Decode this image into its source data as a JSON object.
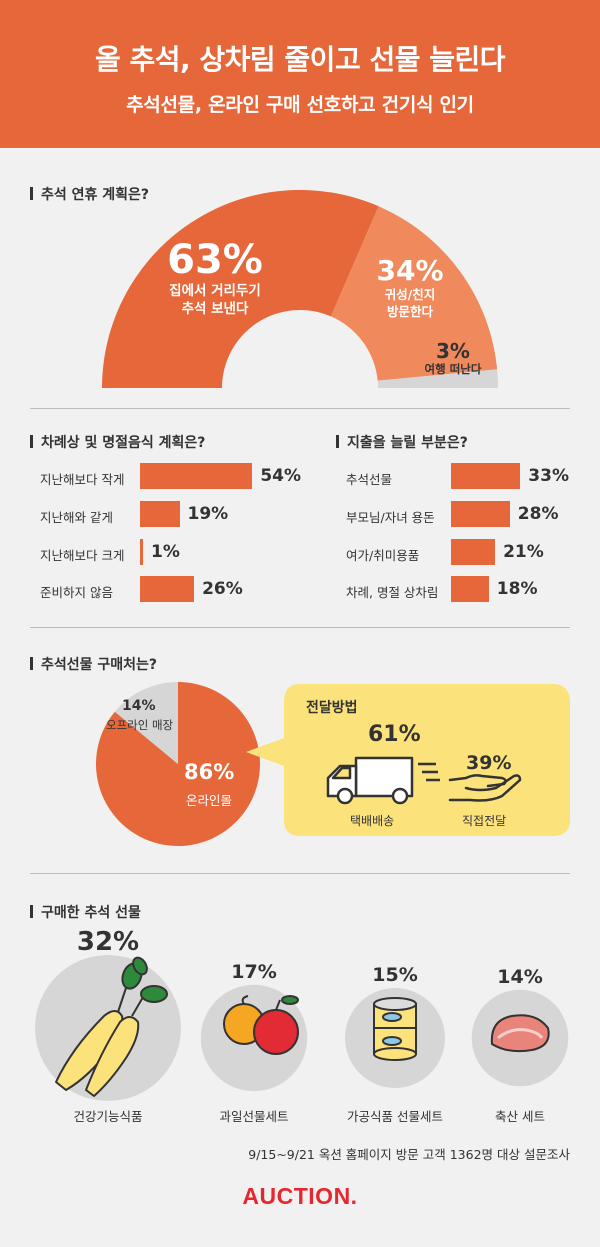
{
  "header": {
    "title": "올 추석, 상차림 줄이고 선물 늘린다",
    "subtitle": "추석선물, 온라인 구매 선호하고 건기식 인기"
  },
  "colors": {
    "primary": "#e6673a",
    "secondary": "#f08a5d",
    "gray": "#d6d6d6",
    "yellow": "#fbe27a",
    "logo": "#e6272f"
  },
  "section1": {
    "title": "추석 연휴 계획은?"
  },
  "section2": {
    "title": "차례상 및 명절음식 계획은?"
  },
  "section3": {
    "title": "지출을 늘릴 부분은?"
  },
  "section4": {
    "title": "추석선물 구매처는?",
    "callout": {
      "title": "전달방법",
      "delivery_pct": "61%",
      "delivery_label": "택배배송",
      "direct_pct": "39%",
      "direct_label": "직접전달"
    }
  },
  "section5": {
    "title": "구매한 추석 선물"
  },
  "footer": {
    "note": "9/15~9/21 옥션 홈페이지 방문 고객 1362명 대상 설문조사",
    "logo": "AUCTION."
  },
  "chart_data": [
    {
      "type": "pie",
      "title": "추석 연휴 계획은?",
      "categories": [
        "집에서 거리두기 추석 보낸다",
        "귀성/친지 방문한다",
        "여행 떠난다"
      ],
      "category_lines": [
        [
          "집에서 거리두기",
          "추석 보낸다"
        ],
        [
          "귀성/친지",
          "방문한다"
        ],
        [
          "여행 떠난다"
        ]
      ],
      "values": [
        63,
        34,
        3
      ],
      "labels": [
        "63%",
        "34%",
        "3%"
      ],
      "colors": [
        "#e6673a",
        "#f08a5d",
        "#d6d6d6"
      ]
    },
    {
      "type": "bar",
      "title": "차례상 및 명절음식 계획은?",
      "categories": [
        "지난해보다 작게",
        "지난해와 같게",
        "지난해보다 크게",
        "준비하지 않음"
      ],
      "values": [
        54,
        19,
        1,
        26
      ],
      "labels": [
        "54%",
        "19%",
        "1%",
        "26%"
      ]
    },
    {
      "type": "bar",
      "title": "지출을 늘릴 부분은?",
      "categories": [
        "추석선물",
        "부모님/자녀 용돈",
        "여가/취미용품",
        "차례, 명절 상차림"
      ],
      "values": [
        33,
        28,
        21,
        18
      ],
      "labels": [
        "33%",
        "28%",
        "21%",
        "18%"
      ]
    },
    {
      "type": "pie",
      "title": "추석선물 구매처는?",
      "categories": [
        "온라인몰",
        "오프라인 매장"
      ],
      "values": [
        86,
        14
      ],
      "labels": [
        "86%",
        "14%"
      ],
      "colors": [
        "#e6673a",
        "#d6d6d6"
      ]
    },
    {
      "type": "bar",
      "title": "전달방법",
      "categories": [
        "택배배송",
        "직접전달"
      ],
      "values": [
        61,
        39
      ],
      "labels": [
        "61%",
        "39%"
      ]
    },
    {
      "type": "bar",
      "title": "구매한 추석 선물",
      "categories": [
        "건강기능식품",
        "과일선물세트",
        "가공식품 선물세트",
        "축산 세트"
      ],
      "values": [
        32,
        17,
        15,
        14
      ],
      "labels": [
        "32%",
        "17%",
        "15%",
        "14%"
      ]
    }
  ]
}
